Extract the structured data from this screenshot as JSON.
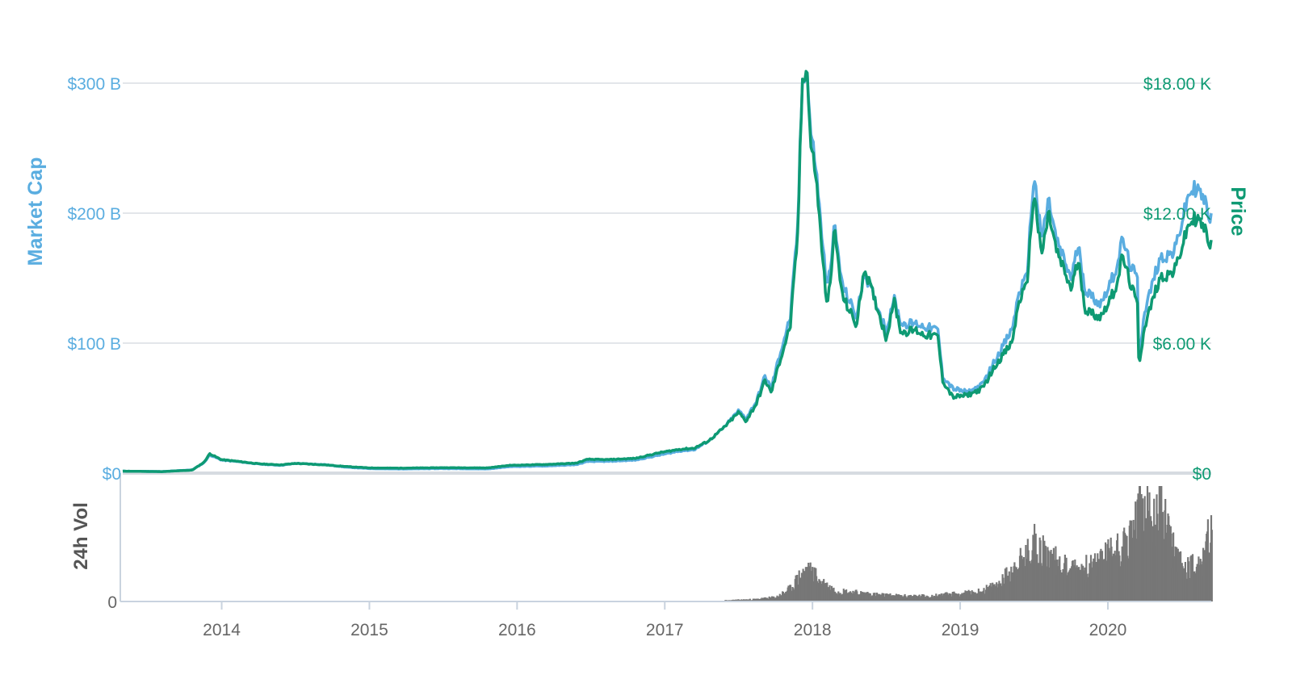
{
  "colors": {
    "market_cap": "#5aade0",
    "price": "#0e9a73",
    "volume": "#777777",
    "grid": "#e3e6ea",
    "axis": "#c9d3df",
    "time_label": "#666666",
    "vol_label": "#555555"
  },
  "chart_data": [
    {
      "type": "line",
      "title": "",
      "ylabel_left": "Market Cap",
      "ylabel_right": "Price",
      "xlim": [
        2013.33,
        2020.7
      ],
      "ylim_left": [
        0,
        300
      ],
      "ylim_right": [
        0,
        18000
      ],
      "left_ticks": [
        {
          "value": 0,
          "label": "$0"
        },
        {
          "value": 100,
          "label": "$100 B"
        },
        {
          "value": 200,
          "label": "$200 B"
        },
        {
          "value": 300,
          "label": "$300 B"
        }
      ],
      "right_ticks": [
        {
          "value": 0,
          "label": "$0"
        },
        {
          "value": 6000,
          "label": "$6.00 K"
        },
        {
          "value": 12000,
          "label": "$12.00 K"
        },
        {
          "value": 18000,
          "label": "$18.00 K"
        }
      ],
      "grid": true,
      "series": [
        {
          "name": "Market Cap",
          "axis": "left",
          "points": [
            [
              2013.33,
              1.5
            ],
            [
              2013.6,
              1.2
            ],
            [
              2013.8,
              2.5
            ],
            [
              2013.88,
              8
            ],
            [
              2013.92,
              14
            ],
            [
              2013.96,
              12
            ],
            [
              2014.0,
              10
            ],
            [
              2014.1,
              9
            ],
            [
              2014.25,
              7
            ],
            [
              2014.4,
              6
            ],
            [
              2014.5,
              7.5
            ],
            [
              2014.7,
              6.5
            ],
            [
              2014.85,
              4.5
            ],
            [
              2015.0,
              3.5
            ],
            [
              2015.2,
              3.2
            ],
            [
              2015.5,
              3.5
            ],
            [
              2015.8,
              3.2
            ],
            [
              2015.95,
              5
            ],
            [
              2016.2,
              5.5
            ],
            [
              2016.4,
              6.5
            ],
            [
              2016.48,
              9
            ],
            [
              2016.6,
              9
            ],
            [
              2016.8,
              10
            ],
            [
              2016.97,
              14
            ],
            [
              2017.1,
              17
            ],
            [
              2017.2,
              18
            ],
            [
              2017.3,
              25
            ],
            [
              2017.4,
              35
            ],
            [
              2017.5,
              48
            ],
            [
              2017.55,
              42
            ],
            [
              2017.62,
              55
            ],
            [
              2017.68,
              75
            ],
            [
              2017.72,
              65
            ],
            [
              2017.78,
              92
            ],
            [
              2017.85,
              120
            ],
            [
              2017.9,
              190
            ],
            [
              2017.93,
              300
            ],
            [
              2017.96,
              315
            ],
            [
              2017.99,
              260
            ],
            [
              2018.02,
              240
            ],
            [
              2018.05,
              200
            ],
            [
              2018.1,
              140
            ],
            [
              2018.15,
              190
            ],
            [
              2018.2,
              145
            ],
            [
              2018.3,
              120
            ],
            [
              2018.35,
              155
            ],
            [
              2018.45,
              125
            ],
            [
              2018.5,
              110
            ],
            [
              2018.55,
              135
            ],
            [
              2018.6,
              115
            ],
            [
              2018.7,
              115
            ],
            [
              2018.75,
              113
            ],
            [
              2018.85,
              110
            ],
            [
              2018.88,
              75
            ],
            [
              2018.95,
              65
            ],
            [
              2019.05,
              62
            ],
            [
              2019.15,
              68
            ],
            [
              2019.25,
              90
            ],
            [
              2019.35,
              110
            ],
            [
              2019.4,
              140
            ],
            [
              2019.45,
              150
            ],
            [
              2019.5,
              230
            ],
            [
              2019.55,
              180
            ],
            [
              2019.6,
              210
            ],
            [
              2019.65,
              180
            ],
            [
              2019.75,
              150
            ],
            [
              2019.8,
              175
            ],
            [
              2019.85,
              140
            ],
            [
              2019.95,
              130
            ],
            [
              2020.05,
              155
            ],
            [
              2020.1,
              180
            ],
            [
              2020.15,
              160
            ],
            [
              2020.2,
              150
            ],
            [
              2020.21,
              90
            ],
            [
              2020.25,
              125
            ],
            [
              2020.35,
              165
            ],
            [
              2020.45,
              170
            ],
            [
              2020.55,
              215
            ],
            [
              2020.6,
              220
            ],
            [
              2020.65,
              210
            ],
            [
              2020.7,
              195
            ]
          ]
        },
        {
          "name": "Price",
          "axis": "right",
          "points": [
            [
              2013.33,
              90
            ],
            [
              2013.6,
              70
            ],
            [
              2013.8,
              140
            ],
            [
              2013.88,
              500
            ],
            [
              2013.92,
              900
            ],
            [
              2013.96,
              750
            ],
            [
              2014.0,
              620
            ],
            [
              2014.1,
              550
            ],
            [
              2014.25,
              430
            ],
            [
              2014.4,
              380
            ],
            [
              2014.5,
              450
            ],
            [
              2014.7,
              380
            ],
            [
              2014.85,
              300
            ],
            [
              2015.0,
              240
            ],
            [
              2015.2,
              230
            ],
            [
              2015.5,
              250
            ],
            [
              2015.8,
              240
            ],
            [
              2015.95,
              360
            ],
            [
              2016.2,
              400
            ],
            [
              2016.4,
              460
            ],
            [
              2016.48,
              640
            ],
            [
              2016.6,
              620
            ],
            [
              2016.8,
              680
            ],
            [
              2016.97,
              950
            ],
            [
              2017.1,
              1100
            ],
            [
              2017.2,
              1150
            ],
            [
              2017.3,
              1500
            ],
            [
              2017.4,
              2100
            ],
            [
              2017.5,
              2800
            ],
            [
              2017.55,
              2400
            ],
            [
              2017.62,
              3200
            ],
            [
              2017.68,
              4300
            ],
            [
              2017.72,
              3700
            ],
            [
              2017.78,
              5200
            ],
            [
              2017.85,
              6800
            ],
            [
              2017.9,
              11000
            ],
            [
              2017.93,
              18000
            ],
            [
              2017.96,
              19000
            ],
            [
              2017.99,
              15000
            ],
            [
              2018.02,
              14000
            ],
            [
              2018.05,
              11500
            ],
            [
              2018.1,
              7500
            ],
            [
              2018.15,
              11200
            ],
            [
              2018.2,
              8200
            ],
            [
              2018.3,
              6800
            ],
            [
              2018.35,
              9500
            ],
            [
              2018.45,
              7400
            ],
            [
              2018.5,
              6200
            ],
            [
              2018.55,
              8000
            ],
            [
              2018.6,
              6500
            ],
            [
              2018.7,
              6600
            ],
            [
              2018.75,
              6400
            ],
            [
              2018.85,
              6300
            ],
            [
              2018.88,
              4300
            ],
            [
              2018.95,
              3500
            ],
            [
              2019.05,
              3600
            ],
            [
              2019.15,
              3900
            ],
            [
              2019.25,
              5100
            ],
            [
              2019.35,
              6000
            ],
            [
              2019.4,
              8000
            ],
            [
              2019.45,
              8600
            ],
            [
              2019.5,
              13000
            ],
            [
              2019.55,
              10000
            ],
            [
              2019.6,
              12000
            ],
            [
              2019.65,
              10300
            ],
            [
              2019.75,
              8500
            ],
            [
              2019.8,
              9800
            ],
            [
              2019.85,
              7500
            ],
            [
              2019.95,
              7200
            ],
            [
              2020.05,
              8500
            ],
            [
              2020.1,
              10000
            ],
            [
              2020.15,
              8800
            ],
            [
              2020.2,
              7800
            ],
            [
              2020.21,
              5000
            ],
            [
              2020.25,
              6800
            ],
            [
              2020.35,
              9000
            ],
            [
              2020.45,
              9300
            ],
            [
              2020.55,
              11500
            ],
            [
              2020.6,
              11800
            ],
            [
              2020.65,
              11300
            ],
            [
              2020.7,
              10500
            ]
          ]
        }
      ]
    },
    {
      "type": "bar",
      "ylabel": "24h Vol",
      "y_ticks": [
        {
          "value": 0,
          "label": "0"
        }
      ],
      "ylim": [
        0,
        1
      ],
      "series": [
        {
          "name": "24h Vol",
          "points": [
            [
              2017.4,
              0.01
            ],
            [
              2017.6,
              0.02
            ],
            [
              2017.75,
              0.04
            ],
            [
              2017.85,
              0.12
            ],
            [
              2017.9,
              0.22
            ],
            [
              2017.95,
              0.28
            ],
            [
              2018.0,
              0.26
            ],
            [
              2018.05,
              0.18
            ],
            [
              2018.15,
              0.1
            ],
            [
              2018.3,
              0.08
            ],
            [
              2018.45,
              0.06
            ],
            [
              2018.6,
              0.05
            ],
            [
              2018.8,
              0.05
            ],
            [
              2018.95,
              0.07
            ],
            [
              2019.1,
              0.08
            ],
            [
              2019.25,
              0.15
            ],
            [
              2019.35,
              0.3
            ],
            [
              2019.45,
              0.42
            ],
            [
              2019.5,
              0.55
            ],
            [
              2019.6,
              0.4
            ],
            [
              2019.75,
              0.3
            ],
            [
              2019.9,
              0.32
            ],
            [
              2020.0,
              0.45
            ],
            [
              2020.1,
              0.52
            ],
            [
              2020.15,
              0.6
            ],
            [
              2020.2,
              0.75
            ],
            [
              2020.22,
              0.95
            ],
            [
              2020.3,
              0.65
            ],
            [
              2020.35,
              0.9
            ],
            [
              2020.4,
              0.6
            ],
            [
              2020.5,
              0.3
            ],
            [
              2020.6,
              0.35
            ],
            [
              2020.65,
              0.4
            ],
            [
              2020.7,
              0.75
            ]
          ]
        }
      ]
    }
  ],
  "x_ticks": [
    {
      "value": 2014,
      "label": "2014"
    },
    {
      "value": 2015,
      "label": "2015"
    },
    {
      "value": 2016,
      "label": "2016"
    },
    {
      "value": 2017,
      "label": "2017"
    },
    {
      "value": 2018,
      "label": "2018"
    },
    {
      "value": 2019,
      "label": "2019"
    },
    {
      "value": 2020,
      "label": "2020"
    }
  ]
}
